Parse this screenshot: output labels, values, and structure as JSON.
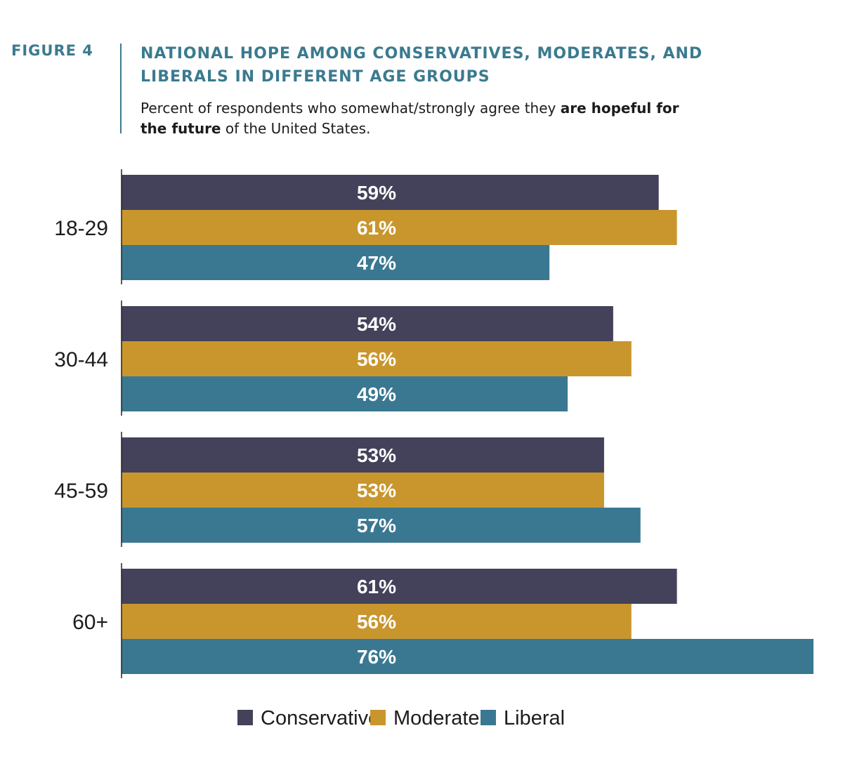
{
  "figure_label": "FIGURE 4",
  "chart_data": {
    "type": "bar",
    "orientation": "horizontal",
    "title": "NATIONAL HOPE AMONG CONSERVATIVES, MODERATES, AND LIBERALS IN DIFFERENT AGE GROUPS",
    "subtitle": {
      "part1": "Percent of respondents who somewhat/strongly agree they ",
      "bold": "are hopeful for the future",
      "part2": " of the United States."
    },
    "categories": [
      "18-29",
      "30-44",
      "45-59",
      "60+"
    ],
    "series": [
      {
        "name": "Conservative",
        "color": "#43425a",
        "values": [
          59,
          54,
          53,
          61
        ]
      },
      {
        "name": "Moderate",
        "color": "#c9962e",
        "values": [
          61,
          56,
          53,
          56
        ]
      },
      {
        "name": "Liberal",
        "color": "#3a7891",
        "values": [
          47,
          49,
          57,
          76
        ]
      }
    ],
    "value_suffix": "%",
    "xlim": [
      0,
      76
    ],
    "grid": false,
    "legend_position": "bottom-center"
  }
}
